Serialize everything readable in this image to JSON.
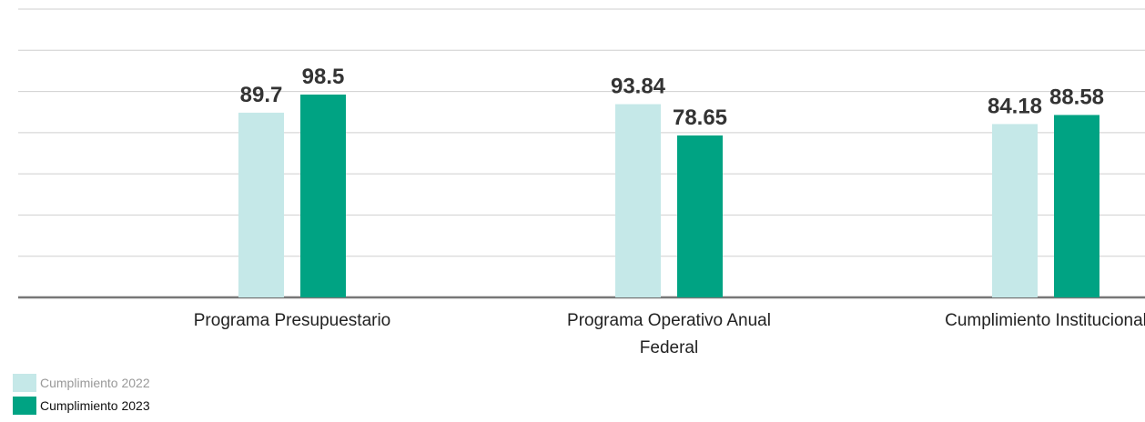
{
  "chart_data": {
    "type": "bar",
    "categories": [
      "Programa Presupuestario",
      "Programa Operativo Anual Federal",
      "Cumplimiento Institucional"
    ],
    "series": [
      {
        "name": "Cumplimiento 2022",
        "color": "#c5e8e8",
        "values": [
          89.7,
          93.84,
          84.18
        ]
      },
      {
        "name": "Cumplimiento 2023",
        "color": "#00a383",
        "values": [
          98.5,
          78.65,
          88.58
        ]
      }
    ],
    "ylim": [
      0,
      140
    ],
    "yticks": [
      0,
      20,
      40,
      60,
      80,
      100,
      120,
      140
    ],
    "grid": true
  }
}
